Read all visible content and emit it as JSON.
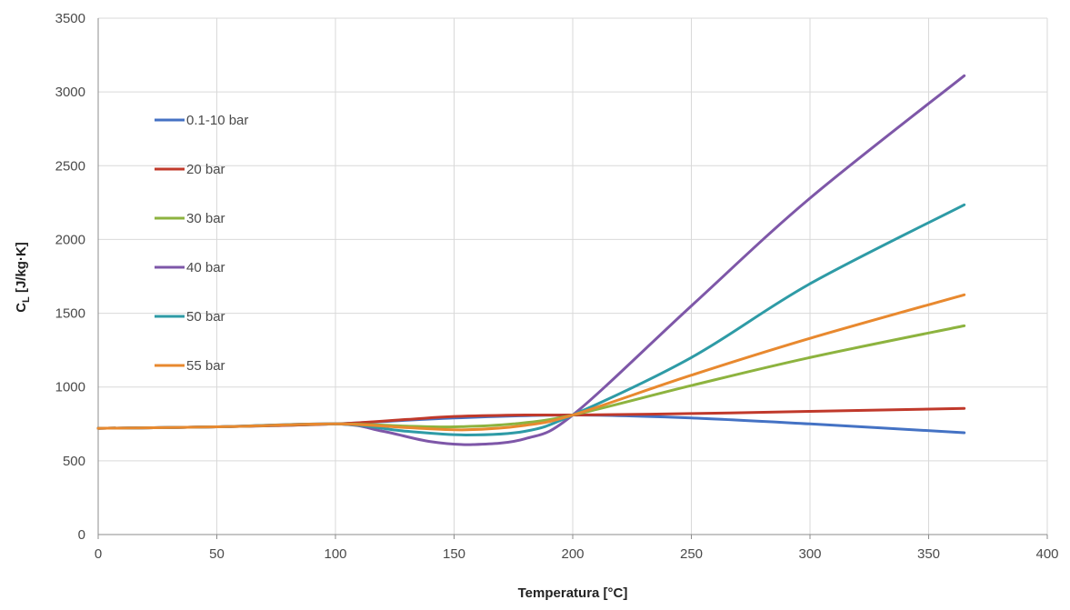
{
  "chart_data": {
    "type": "line",
    "title": "",
    "xlabel": "Temperatura [°C]",
    "ylabel_main": "C",
    "ylabel_sub": "L",
    "ylabel_rest": " [J/kg·K]",
    "xlim": [
      0,
      400
    ],
    "ylim": [
      0,
      3500
    ],
    "x_ticks": [
      "0",
      "50",
      "100",
      "150",
      "200",
      "250",
      "300",
      "350",
      "400"
    ],
    "y_ticks": [
      "0",
      "500",
      "1000",
      "1500",
      "2000",
      "2500",
      "3000",
      "3500"
    ],
    "grid": true,
    "legend_position": "top-left",
    "series": [
      {
        "name": "0.1-10 bar",
        "color": "#4472C4",
        "points": [
          [
            0,
            720
          ],
          [
            50,
            730
          ],
          [
            100,
            750
          ],
          [
            150,
            790
          ],
          [
            200,
            810
          ],
          [
            250,
            790
          ],
          [
            300,
            750
          ],
          [
            365,
            690
          ]
        ]
      },
      {
        "name": "20 bar",
        "color": "#C0392B",
        "points": [
          [
            0,
            720
          ],
          [
            50,
            730
          ],
          [
            100,
            750
          ],
          [
            130,
            780
          ],
          [
            150,
            800
          ],
          [
            180,
            810
          ],
          [
            200,
            810
          ],
          [
            250,
            820
          ],
          [
            300,
            835
          ],
          [
            365,
            855
          ]
        ]
      },
      {
        "name": "30 bar",
        "color": "#8DB33F",
        "points": [
          [
            0,
            720
          ],
          [
            50,
            730
          ],
          [
            100,
            750
          ],
          [
            130,
            735
          ],
          [
            150,
            730
          ],
          [
            175,
            750
          ],
          [
            200,
            810
          ],
          [
            250,
            1010
          ],
          [
            300,
            1200
          ],
          [
            365,
            1415
          ]
        ]
      },
      {
        "name": "40 bar",
        "color": "#7E57A8",
        "points": [
          [
            0,
            720
          ],
          [
            50,
            730
          ],
          [
            100,
            750
          ],
          [
            120,
            700
          ],
          [
            140,
            630
          ],
          [
            158,
            610
          ],
          [
            180,
            650
          ],
          [
            200,
            810
          ],
          [
            250,
            1550
          ],
          [
            300,
            2280
          ],
          [
            365,
            3110
          ]
        ]
      },
      {
        "name": "50 bar",
        "color": "#2E9BA6",
        "points": [
          [
            0,
            720
          ],
          [
            50,
            730
          ],
          [
            100,
            750
          ],
          [
            130,
            700
          ],
          [
            155,
            675
          ],
          [
            180,
            700
          ],
          [
            200,
            810
          ],
          [
            250,
            1200
          ],
          [
            300,
            1700
          ],
          [
            365,
            2235
          ]
        ]
      },
      {
        "name": "55 bar",
        "color": "#E8892F",
        "points": [
          [
            0,
            720
          ],
          [
            50,
            730
          ],
          [
            100,
            750
          ],
          [
            130,
            725
          ],
          [
            155,
            710
          ],
          [
            180,
            740
          ],
          [
            200,
            810
          ],
          [
            250,
            1080
          ],
          [
            300,
            1330
          ],
          [
            365,
            1625
          ]
        ]
      }
    ]
  }
}
